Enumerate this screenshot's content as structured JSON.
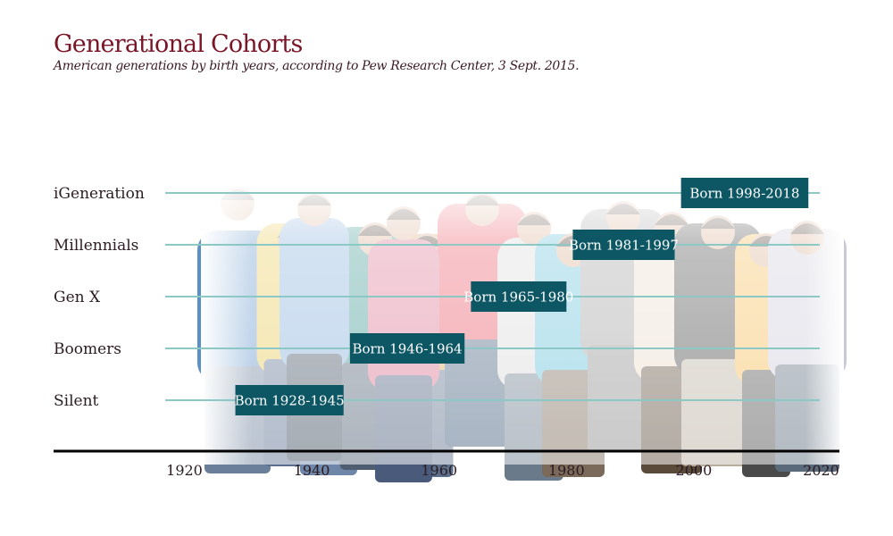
{
  "title": "Generational Cohorts",
  "subtitle": "American generations by birth years, according to Pew Research Center, 3 Sept. 2015.",
  "colors": {
    "title": "#7a1528",
    "label_box": "#0d5765",
    "track_line": "#8cc9c6",
    "axis": "#000000"
  },
  "chart_data": {
    "type": "bar",
    "orientation": "horizontal",
    "title": "Generational Cohorts",
    "subtitle": "American generations by birth years, according to Pew Research Center, 3 Sept. 2015.",
    "xlim": [
      1917,
      2020
    ],
    "x_ticks": [
      1920,
      1940,
      1960,
      1980,
      2000,
      2020
    ],
    "cohorts": [
      {
        "name": "iGeneration",
        "start": 1998,
        "end": 2018,
        "label": "Born 1998-2018"
      },
      {
        "name": "Millennials",
        "start": 1981,
        "end": 1997,
        "label": "Born 1981-1997"
      },
      {
        "name": "Gen X",
        "start": 1965,
        "end": 1980,
        "label": "Born 1965-1980"
      },
      {
        "name": "Boomers",
        "start": 1946,
        "end": 1964,
        "label": "Born 1946-1964"
      },
      {
        "name": "Silent",
        "start": 1928,
        "end": 1945,
        "label": "Born 1928-1945"
      }
    ],
    "background": "faded photo of a diverse crowd of people of all ages"
  }
}
